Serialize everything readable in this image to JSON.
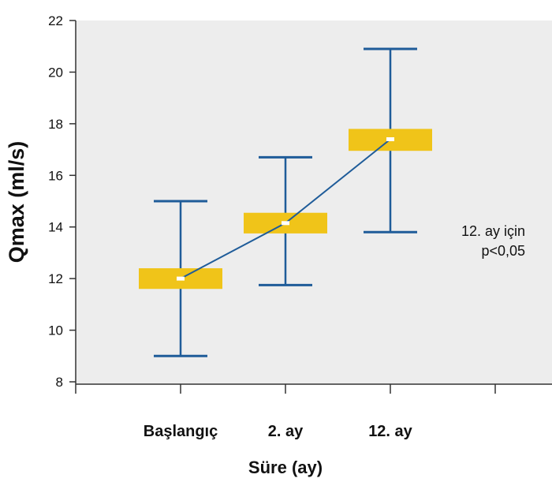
{
  "chart_data": {
    "type": "boxplot",
    "title": "",
    "xlabel": "Süre (ay)",
    "ylabel": "Qmax (ml/s)",
    "ylim": [
      8,
      22
    ],
    "yticks": [
      8,
      10,
      12,
      14,
      16,
      18,
      20,
      22
    ],
    "yticks_labels": [
      "8",
      "10",
      "12",
      "14",
      "16",
      "18",
      "20",
      "22"
    ],
    "grid": false,
    "categories": [
      "Başlangıç",
      "2. ay",
      "12. ay"
    ],
    "series": [
      {
        "points": [
          {
            "category": "Başlangıç",
            "mean": 12.0,
            "box_low": 11.6,
            "box_high": 12.4,
            "whisker_low": 9.0,
            "whisker_high": 15.0
          },
          {
            "category": "2. ay",
            "mean": 14.15,
            "box_low": 13.75,
            "box_high": 14.55,
            "whisker_low": 11.75,
            "whisker_high": 16.7
          },
          {
            "category": "12. ay",
            "mean": 17.4,
            "box_low": 16.95,
            "box_high": 17.8,
            "whisker_low": 13.8,
            "whisker_high": 20.9
          }
        ]
      }
    ],
    "annotation": [
      "12. ay için",
      "p<0,05"
    ],
    "colors": {
      "plot_background": "#EDEDED",
      "box": "#F0C419",
      "whisker": "#1F5C99",
      "line": "#1F5C99",
      "mean_marker": "#FFFFFF",
      "axis": "#333333"
    }
  }
}
